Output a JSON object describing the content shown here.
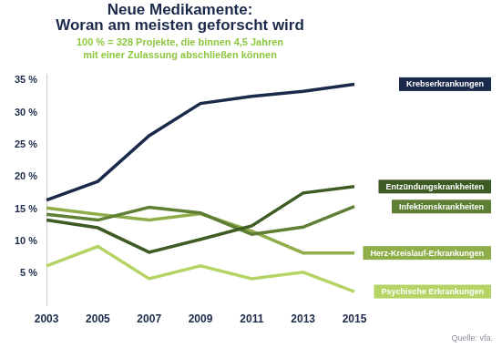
{
  "chart_data": {
    "type": "line",
    "title": [
      "Neue Medikamente:",
      "Woran am meisten geforscht wird"
    ],
    "subtitle": [
      "100 % = 328 Projekte, die binnen 4,5 Jahren",
      "mit einer Zulassung abschließen können"
    ],
    "source": "Quelle: vfa.",
    "categories": [
      "2003",
      "2005",
      "2007",
      "2009",
      "2011",
      "2013",
      "2015"
    ],
    "ylim": [
      0,
      36
    ],
    "yticks": [
      {
        "value": 5,
        "label": "5 %"
      },
      {
        "value": 10,
        "label": "10 %"
      },
      {
        "value": 15,
        "label": "15 %"
      },
      {
        "value": 20,
        "label": "20 %"
      },
      {
        "value": 25,
        "label": "25 %"
      },
      {
        "value": 30,
        "label": "30 %"
      },
      {
        "value": 35,
        "label": "35 %"
      }
    ],
    "grid": false,
    "marker": "none",
    "series": [
      {
        "name": "Krebserkrankungen",
        "color": "#1b2a4a",
        "values": [
          16.4,
          19.3,
          26.4,
          31.4,
          32.5,
          33.3,
          34.4
        ]
      },
      {
        "name": "Entzündungskrankheiten",
        "color": "#3e5b23",
        "values": [
          13.3,
          12.1,
          8.3,
          10.3,
          12.4,
          17.5,
          18.5
        ]
      },
      {
        "name": "Infektionskrankheiten",
        "color": "#5f7f34",
        "values": [
          14.2,
          13.3,
          15.3,
          14.4,
          11.1,
          12.2,
          15.4
        ]
      },
      {
        "name": "Herz-Kreislauf-Erkrankungen",
        "color": "#8fae4a",
        "values": [
          15.2,
          14.2,
          13.3,
          14.3,
          11.6,
          8.2,
          8.2
        ]
      },
      {
        "name": "Psychische Erkrankungen",
        "color": "#b5d465",
        "values": [
          6.2,
          9.2,
          4.2,
          6.2,
          4.2,
          5.2,
          2.2
        ]
      }
    ]
  }
}
